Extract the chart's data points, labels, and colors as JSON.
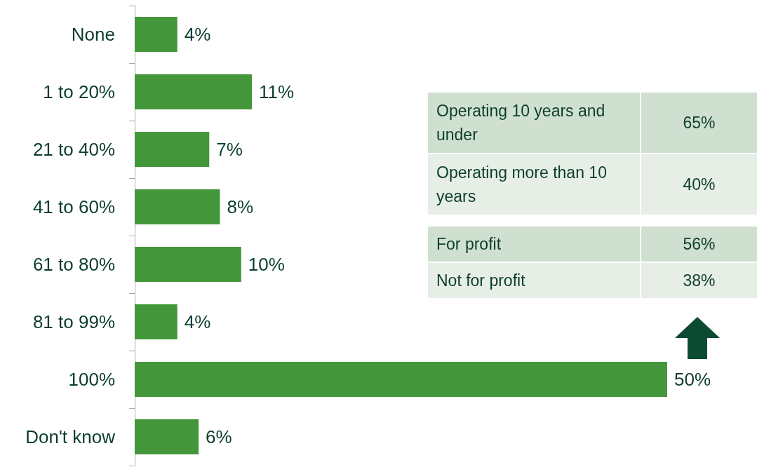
{
  "chart_data": {
    "type": "bar",
    "orientation": "horizontal",
    "categories": [
      "None",
      "1 to 20%",
      "21 to 40%",
      "41 to 60%",
      "61 to 80%",
      "81 to 99%",
      "100%",
      "Don't know"
    ],
    "values": [
      4,
      11,
      7,
      8,
      10,
      4,
      50,
      6
    ],
    "value_labels": [
      "4%",
      "11%",
      "7%",
      "8%",
      "10%",
      "4%",
      "50%",
      "6%"
    ],
    "color": "#43963a",
    "annotations": [
      "Operating 10 years and under",
      "65%",
      "Operating more than 10 years",
      "40%",
      "For profit",
      "56%",
      "Not for profit",
      "38%"
    ],
    "data_labels": false
  }
}
